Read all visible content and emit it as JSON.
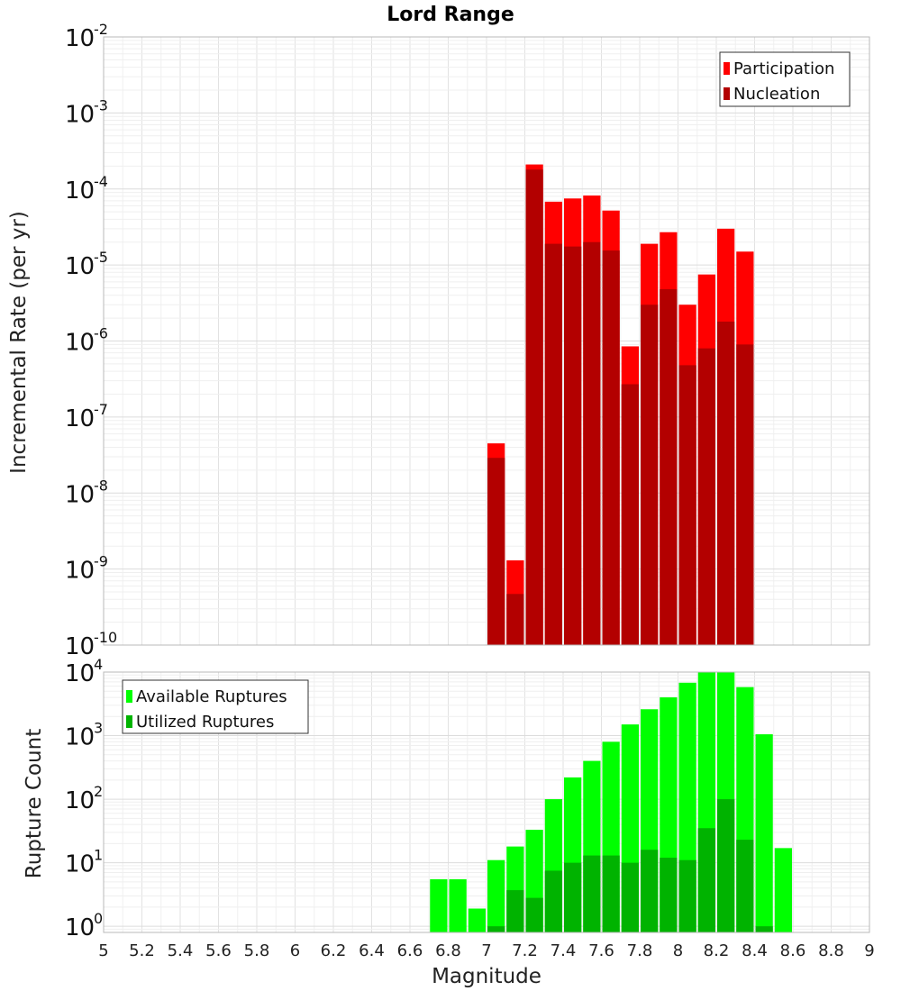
{
  "chart_data": [
    {
      "type": "bar",
      "title": "Lord Range",
      "ylabel": "Incremental Rate (per yr)",
      "xlabel": "",
      "y_scale": "log",
      "ylim": [
        1e-10,
        0.01
      ],
      "xlim": [
        5,
        9
      ],
      "grid": true,
      "legend_position": "top-right",
      "ytick_bases": [
        "10",
        "10",
        "10",
        "10",
        "10",
        "10",
        "10",
        "10",
        "10"
      ],
      "ytick_exponents": [
        "-10",
        "-9",
        "-8",
        "-7",
        "-6",
        "-5",
        "-4",
        "-3",
        "-2"
      ],
      "ytick_values": [
        1e-10,
        1e-09,
        1e-08,
        1e-07,
        1e-06,
        1e-05,
        0.0001,
        0.001,
        0.01
      ],
      "bar_width": 0.1,
      "x": [
        7.05,
        7.15,
        7.25,
        7.35,
        7.45,
        7.55,
        7.65,
        7.75,
        7.85,
        7.95,
        8.05,
        8.15,
        8.25,
        8.35
      ],
      "series": [
        {
          "name": "Participation",
          "color": "#ff0000",
          "values": [
            4.5e-08,
            1.3e-09,
            0.00021,
            6.8e-05,
            7.5e-05,
            8.2e-05,
            5.2e-05,
            8.5e-07,
            1.9e-05,
            2.7e-05,
            3e-06,
            7.5e-06,
            3e-05,
            1.5e-05
          ]
        },
        {
          "name": "Nucleation",
          "color": "#b30000",
          "values": [
            2.9e-08,
            4.7e-10,
            0.00018,
            1.9e-05,
            1.75e-05,
            2e-05,
            1.55e-05,
            2.7e-07,
            3e-06,
            4.8e-06,
            4.8e-07,
            8e-07,
            1.8e-06,
            9e-07
          ]
        }
      ]
    },
    {
      "type": "bar",
      "title": "",
      "ylabel": "Rupture Count",
      "xlabel": "Magnitude",
      "y_scale": "log",
      "ylim": [
        0.8,
        10000
      ],
      "xlim": [
        5,
        9
      ],
      "grid": true,
      "legend_position": "top-left",
      "ytick_bases": [
        "10",
        "10",
        "10",
        "10",
        "10"
      ],
      "ytick_exponents": [
        "0",
        "1",
        "2",
        "3",
        "4"
      ],
      "ytick_values": [
        1,
        10,
        100,
        1000,
        10000
      ],
      "xtick_labels": [
        "5",
        "5.2",
        "5.4",
        "5.6",
        "5.8",
        "6",
        "6.2",
        "6.4",
        "6.6",
        "6.8",
        "7",
        "7.2",
        "7.4",
        "7.6",
        "7.8",
        "8",
        "8.2",
        "8.4",
        "8.6",
        "8.8",
        "9"
      ],
      "xtick_values": [
        5,
        5.2,
        5.4,
        5.6,
        5.8,
        6,
        6.2,
        6.4,
        6.6,
        6.8,
        7,
        7.2,
        7.4,
        7.6,
        7.8,
        8,
        8.2,
        8.4,
        8.6,
        8.8,
        9
      ],
      "bar_width": 0.1,
      "x": [
        6.75,
        6.85,
        6.95,
        7.05,
        7.15,
        7.25,
        7.35,
        7.45,
        7.55,
        7.65,
        7.75,
        7.85,
        7.95,
        8.05,
        8.15,
        8.25,
        8.35,
        8.45,
        8.55
      ],
      "series": [
        {
          "name": "Available Ruptures",
          "color": "#00ff00",
          "values": [
            5.5,
            5.5,
            1.9,
            11,
            18,
            33,
            100,
            220,
            400,
            800,
            1500,
            2600,
            4000,
            6800,
            10000,
            10000,
            5800,
            1050,
            17
          ]
        },
        {
          "name": "Utilized Ruptures",
          "color": "#00b300",
          "values": [
            0,
            0,
            0,
            1,
            3.7,
            2.8,
            7.5,
            10,
            13,
            13,
            10,
            16,
            12,
            11,
            35,
            100,
            23,
            1,
            0
          ]
        }
      ]
    }
  ]
}
